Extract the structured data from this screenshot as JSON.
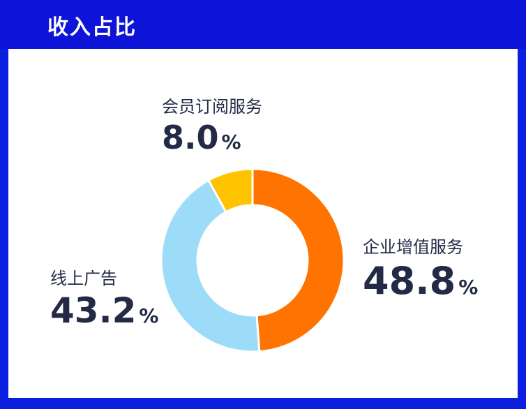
{
  "title": "收入占比",
  "colors": {
    "background": "#0a1fe0",
    "panel": "#ffffff",
    "text": "#222a45"
  },
  "chart_data": {
    "type": "pie",
    "style": "donut",
    "title": "收入占比",
    "slices": [
      {
        "label": "企业增值服务",
        "value": 48.8,
        "display": "48.8",
        "unit": "%",
        "color": "#ff7300"
      },
      {
        "label": "线上广告",
        "value": 43.2,
        "display": "43.2",
        "unit": "%",
        "color": "#9ddcf9"
      },
      {
        "label": "会员订阅服务",
        "value": 8.0,
        "display": "8.0",
        "unit": "%",
        "color": "#ffc400"
      }
    ]
  }
}
